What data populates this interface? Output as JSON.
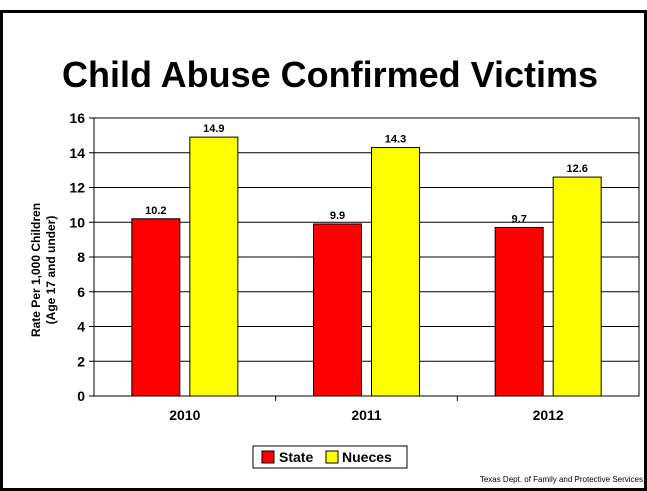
{
  "chart_data": {
    "type": "bar",
    "title": "Child Abuse Confirmed Victims",
    "ylabel_lines": [
      "Rate Per 1,000 Children",
      "(Age 17 and under)"
    ],
    "xlabel": "",
    "categories": [
      "2010",
      "2011",
      "2012"
    ],
    "series": [
      {
        "name": "State",
        "values": [
          10.2,
          9.9,
          9.7
        ],
        "color": "#ff0000"
      },
      {
        "name": "Nueces",
        "values": [
          14.9,
          14.3,
          12.6
        ],
        "color": "#ffff00"
      }
    ],
    "data_labels": [
      [
        "10.2",
        "9.9",
        "9.7"
      ],
      [
        "14.9",
        "14.3",
        "12.6"
      ]
    ],
    "ylim": [
      0,
      16
    ],
    "yticks": [
      0,
      2,
      4,
      6,
      8,
      10,
      12,
      14,
      16
    ],
    "grid": true,
    "legend_position": "bottom"
  },
  "source_note": "Texas Dept. of Family and Protective Services",
  "colors": {
    "frame": "#000000",
    "background": "#ffffff",
    "gridline": "#000000"
  }
}
